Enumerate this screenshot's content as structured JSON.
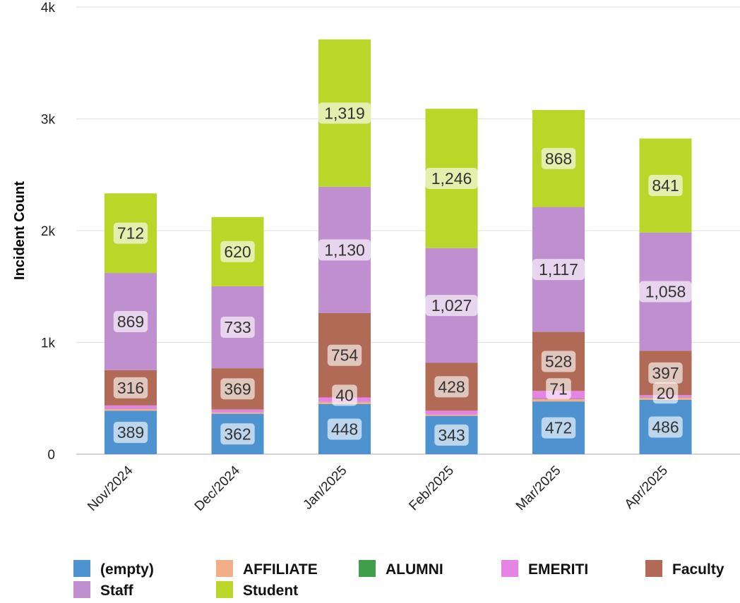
{
  "chart_data": {
    "type": "bar",
    "stacked": true,
    "ylabel": "Incident Count",
    "xlabel": "",
    "ylim": [
      0,
      4000
    ],
    "yticks": [
      {
        "value": 0,
        "label": "0"
      },
      {
        "value": 1000,
        "label": "1k"
      },
      {
        "value": 2000,
        "label": "2k"
      },
      {
        "value": 3000,
        "label": "3k"
      },
      {
        "value": 4000,
        "label": "4k"
      }
    ],
    "grid": true,
    "legend_position": "bottom",
    "categories": [
      "Nov/2024",
      "Dec/2024",
      "Jan/2025",
      "Feb/2025",
      "Mar/2025",
      "Apr/2025"
    ],
    "series": [
      {
        "name": "(empty)",
        "color": "#4e93d0",
        "values": [
          389,
          362,
          448,
          343,
          472,
          486
        ]
      },
      {
        "name": "AFFILIATE",
        "color": "#f2ae86",
        "values": [
          15,
          12,
          18,
          10,
          20,
          20
        ]
      },
      {
        "name": "ALUMNI",
        "color": "#3f9e4a",
        "values": [
          2,
          1,
          2,
          1,
          3,
          2
        ]
      },
      {
        "name": "EMERITI",
        "color": "#e684e6",
        "values": [
          30,
          25,
          40,
          35,
          71,
          20
        ]
      },
      {
        "name": "Faculty",
        "color": "#b06a55",
        "values": [
          316,
          369,
          754,
          428,
          528,
          397
        ]
      },
      {
        "name": "Staff",
        "color": "#c08fd0",
        "values": [
          869,
          733,
          1130,
          1027,
          1117,
          1058
        ]
      },
      {
        "name": "Student",
        "color": "#bad628",
        "values": [
          712,
          620,
          1319,
          1246,
          868,
          841
        ]
      }
    ],
    "data_labels": [
      {
        "series": 0,
        "category": 0,
        "text": "389"
      },
      {
        "series": 0,
        "category": 1,
        "text": "362"
      },
      {
        "series": 0,
        "category": 2,
        "text": "448"
      },
      {
        "series": 0,
        "category": 3,
        "text": "343"
      },
      {
        "series": 0,
        "category": 4,
        "text": "472"
      },
      {
        "series": 0,
        "category": 5,
        "text": "486"
      },
      {
        "series": 3,
        "category": 2,
        "text": "40"
      },
      {
        "series": 3,
        "category": 4,
        "text": "71"
      },
      {
        "series": 3,
        "category": 5,
        "text": "20"
      },
      {
        "series": 4,
        "category": 0,
        "text": "316"
      },
      {
        "series": 4,
        "category": 1,
        "text": "369"
      },
      {
        "series": 4,
        "category": 2,
        "text": "754"
      },
      {
        "series": 4,
        "category": 3,
        "text": "428"
      },
      {
        "series": 4,
        "category": 4,
        "text": "528"
      },
      {
        "series": 4,
        "category": 5,
        "text": "397"
      },
      {
        "series": 5,
        "category": 0,
        "text": "869"
      },
      {
        "series": 5,
        "category": 1,
        "text": "733"
      },
      {
        "series": 5,
        "category": 2,
        "text": "1,130"
      },
      {
        "series": 5,
        "category": 3,
        "text": "1,027"
      },
      {
        "series": 5,
        "category": 4,
        "text": "1,117"
      },
      {
        "series": 5,
        "category": 5,
        "text": "1,058"
      },
      {
        "series": 6,
        "category": 0,
        "text": "712"
      },
      {
        "series": 6,
        "category": 1,
        "text": "620"
      },
      {
        "series": 6,
        "category": 2,
        "text": "1,319"
      },
      {
        "series": 6,
        "category": 3,
        "text": "1,246"
      },
      {
        "series": 6,
        "category": 4,
        "text": "868"
      },
      {
        "series": 6,
        "category": 5,
        "text": "841"
      }
    ]
  }
}
